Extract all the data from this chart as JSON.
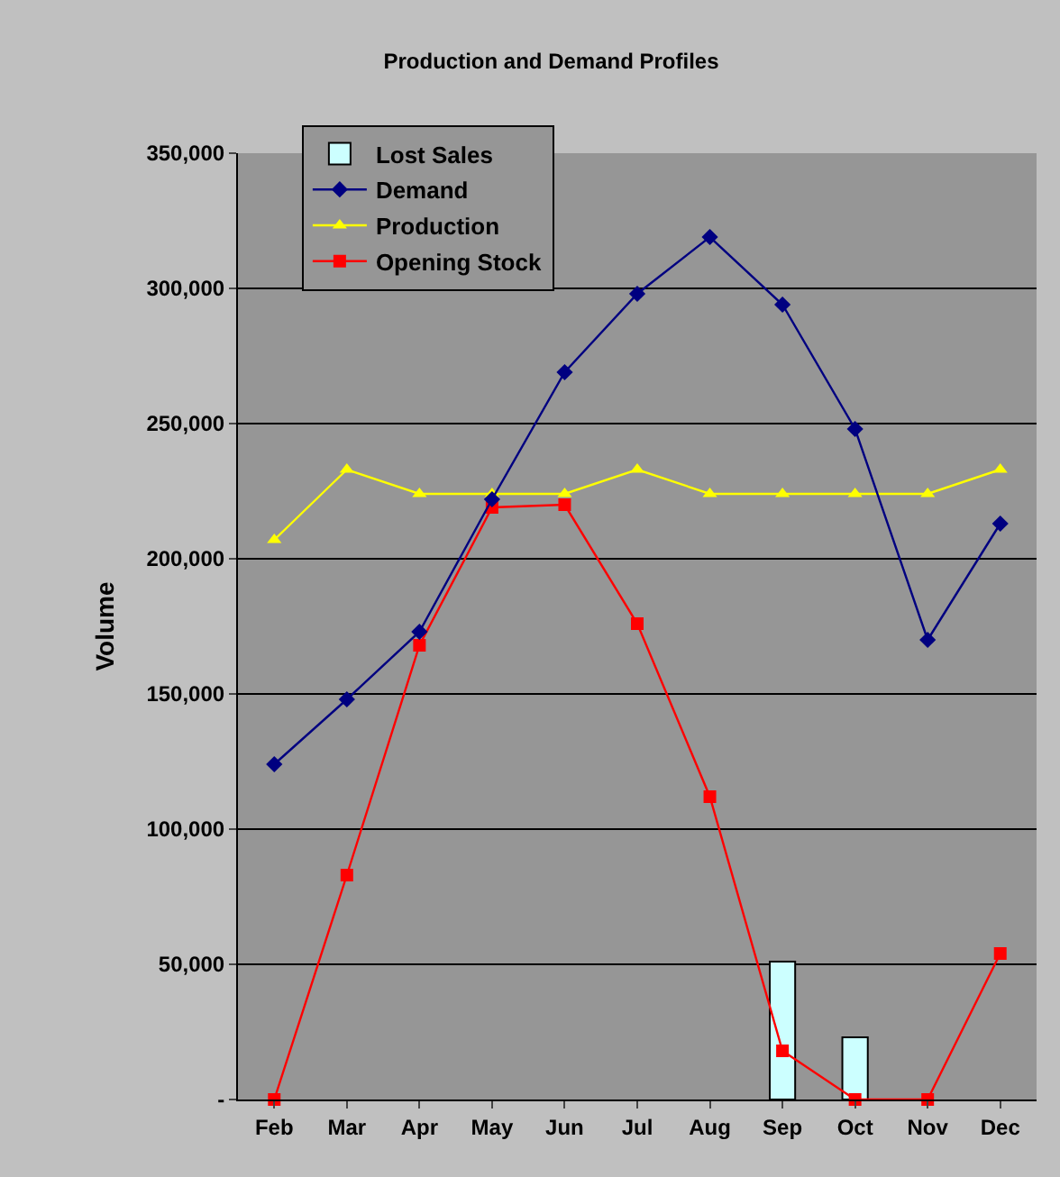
{
  "chart_data": {
    "type": "line",
    "title": "Production and Demand Profiles",
    "ylabel": "Volume",
    "categories": [
      "Feb",
      "Mar",
      "Apr",
      "May",
      "Jun",
      "Jul",
      "Aug",
      "Sep",
      "Oct",
      "Nov",
      "Dec"
    ],
    "series": [
      {
        "name": "Lost Sales",
        "type": "bar",
        "color": "#ccffff",
        "values": [
          null,
          null,
          null,
          null,
          null,
          null,
          null,
          51000,
          23000,
          null,
          null
        ]
      },
      {
        "name": "Demand",
        "color": "#000080",
        "marker": "diamond",
        "values": [
          124000,
          148000,
          173000,
          222000,
          269000,
          298000,
          319000,
          294000,
          248000,
          170000,
          213000
        ]
      },
      {
        "name": "Production",
        "color": "#ffff00",
        "marker": "triangle",
        "values": [
          207000,
          233000,
          224000,
          224000,
          224000,
          233000,
          224000,
          224000,
          224000,
          224000,
          233000
        ]
      },
      {
        "name": "Opening Stock",
        "color": "#ff0000",
        "marker": "square",
        "values": [
          0,
          83000,
          168000,
          219000,
          220000,
          176000,
          112000,
          18000,
          0,
          0,
          54000
        ]
      }
    ],
    "ylim": [
      0,
      350000
    ],
    "yticks": [
      {
        "value": 0,
        "label": "-"
      },
      {
        "value": 50000,
        "label": "50,000"
      },
      {
        "value": 100000,
        "label": "100,000"
      },
      {
        "value": 150000,
        "label": "150,000"
      },
      {
        "value": 200000,
        "label": "200,000"
      },
      {
        "value": 250000,
        "label": "250,000"
      },
      {
        "value": 300000,
        "label": "300,000"
      },
      {
        "value": 350000,
        "label": "350,000"
      }
    ],
    "grid": "y",
    "legend": "top left"
  }
}
